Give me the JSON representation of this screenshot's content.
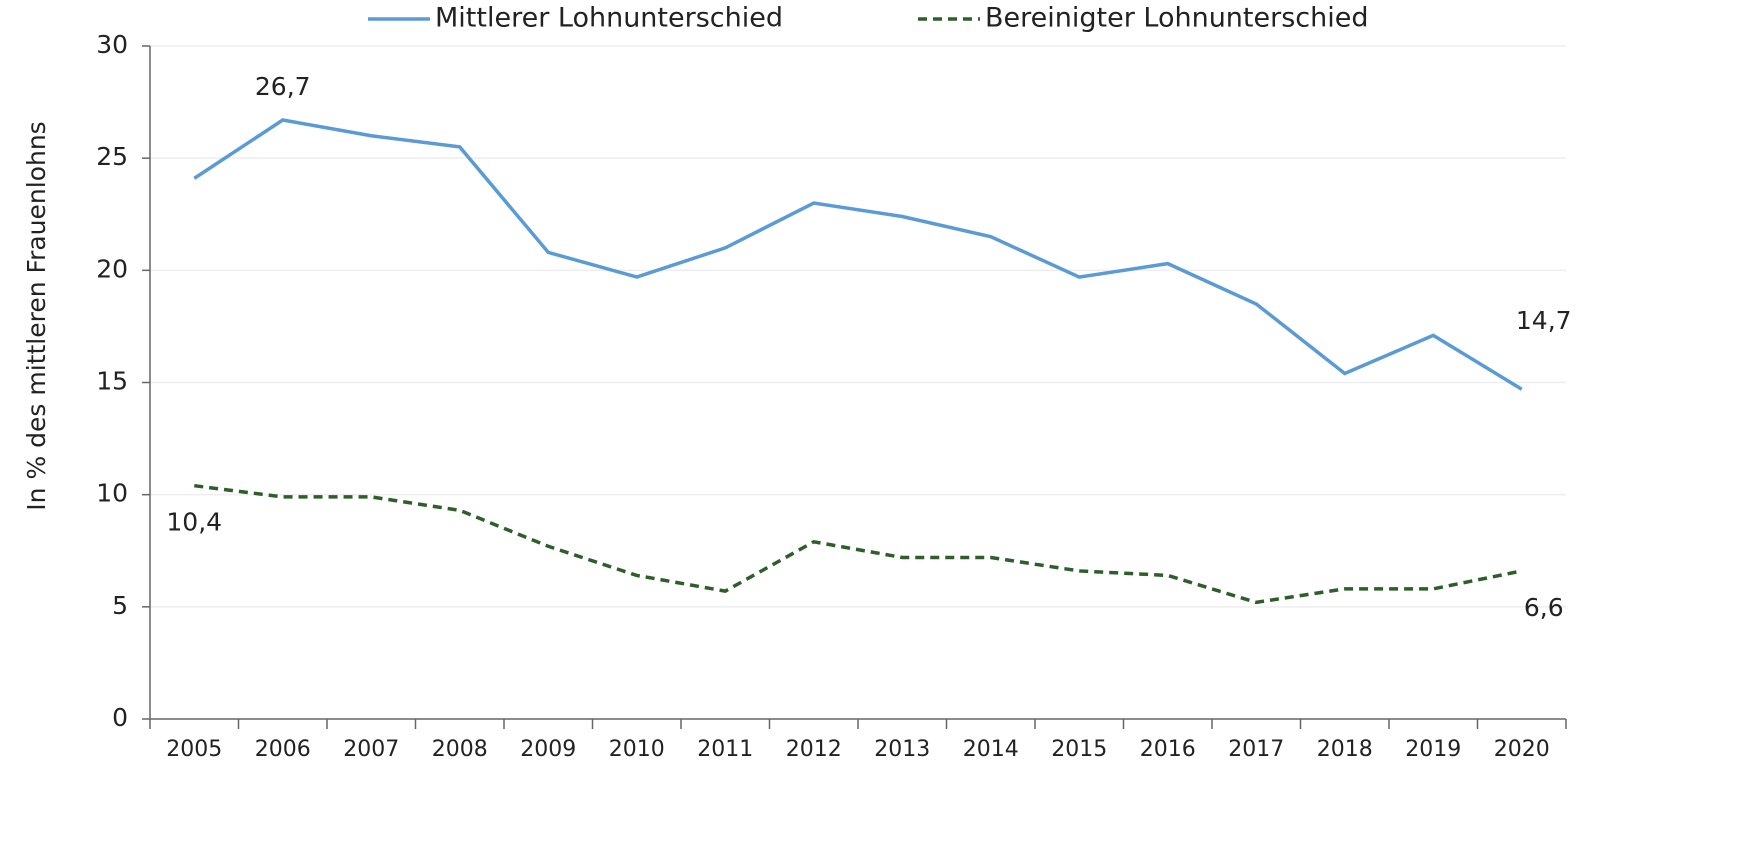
{
  "chart_data": {
    "type": "line",
    "y_label": "In % des mittleren Frauenlohns",
    "categories": [
      "2005",
      "2006",
      "2007",
      "2008",
      "2009",
      "2010",
      "2011",
      "2012",
      "2013",
      "2014",
      "2015",
      "2016",
      "2017",
      "2018",
      "2019",
      "2020"
    ],
    "series": [
      {
        "name": "Mittlerer Lohnunterschied",
        "color": "#5b9bd5",
        "dash": false,
        "values": [
          24.1,
          26.7,
          26.0,
          25.5,
          20.8,
          19.7,
          21.0,
          23.0,
          22.4,
          21.5,
          19.7,
          20.3,
          18.5,
          15.4,
          17.1,
          14.7
        ],
        "value_labels": [
          null,
          "26,7",
          null,
          null,
          null,
          null,
          null,
          null,
          null,
          null,
          null,
          null,
          null,
          null,
          null,
          "14,7"
        ]
      },
      {
        "name": "Bereinigter Lohnunterschied",
        "color": "#2e5f2a",
        "dash": true,
        "values": [
          10.4,
          9.9,
          9.9,
          9.3,
          7.7,
          6.4,
          5.7,
          7.9,
          7.2,
          7.2,
          6.6,
          6.4,
          5.2,
          5.8,
          5.8,
          6.6
        ],
        "value_labels": [
          "10,4",
          null,
          null,
          null,
          null,
          null,
          null,
          null,
          null,
          null,
          null,
          null,
          null,
          null,
          null,
          "6,6"
        ]
      }
    ],
    "ylim": [
      0,
      30
    ],
    "yticks": [
      0,
      5,
      10,
      15,
      20,
      25,
      30
    ],
    "grid": true,
    "legend": "top"
  }
}
